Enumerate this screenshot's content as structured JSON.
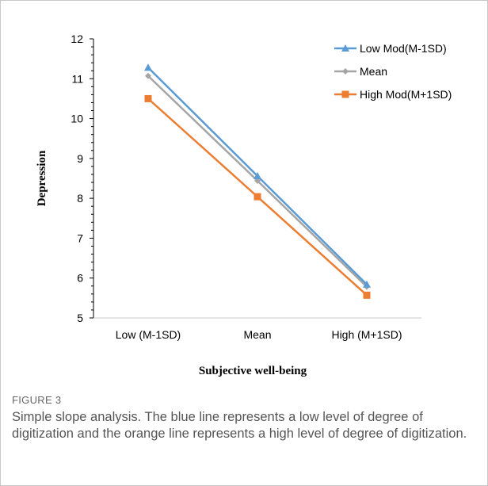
{
  "figure": {
    "label": "FIGURE 3",
    "caption": "Simple slope analysis. The blue line represents a low level of degree of digitization and the orange line represents a high level of degree of digitization."
  },
  "chart_data": {
    "type": "line",
    "categories": [
      "Low (M-1SD)",
      "Mean",
      "High (M+1SD)"
    ],
    "xlabel": "Subjective well-being",
    "ylabel": "Depression",
    "ylim": [
      5,
      12
    ],
    "yticks": [
      5,
      6,
      7,
      8,
      9,
      10,
      11,
      12
    ],
    "grid": false,
    "legend_position": "top-right",
    "series": [
      {
        "name": "Low Mod(M-1SD)",
        "values": [
          11.28,
          8.56,
          5.84
        ],
        "color": "#5b9bd5",
        "marker": "triangle"
      },
      {
        "name": "Mean",
        "values": [
          11.07,
          8.44,
          5.78
        ],
        "color": "#a5a5a5",
        "marker": "diamond"
      },
      {
        "name": "High Mod(M+1SD)",
        "values": [
          10.5,
          8.04,
          5.57
        ],
        "color": "#ed7d31",
        "marker": "square"
      }
    ]
  }
}
